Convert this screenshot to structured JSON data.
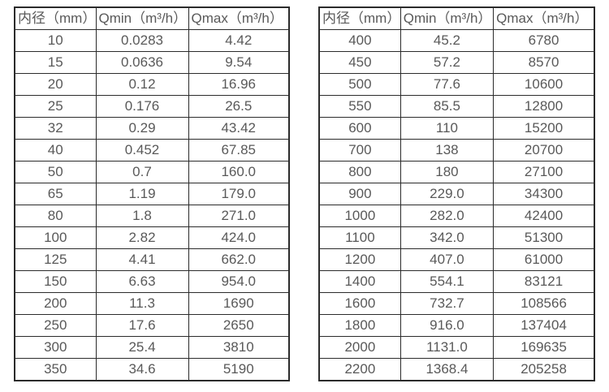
{
  "colors": {
    "background": "#ffffff",
    "border": "#2b2b2b",
    "text": "#595959"
  },
  "tables": [
    {
      "name": "flow-spec-table-small-diameters",
      "headers": [
        "内径（mm）",
        "Qmin（m³/h）",
        "Qmax（m³/h）"
      ],
      "rows": [
        [
          "10",
          "0.0283",
          "4.42"
        ],
        [
          "15",
          "0.0636",
          "9.54"
        ],
        [
          "20",
          "0.12",
          "16.96"
        ],
        [
          "25",
          "0.176",
          "26.5"
        ],
        [
          "32",
          "0.29",
          "43.42"
        ],
        [
          "40",
          "0.452",
          "67.85"
        ],
        [
          "50",
          "0.7",
          "160.0"
        ],
        [
          "65",
          "1.19",
          "179.0"
        ],
        [
          "80",
          "1.8",
          "271.0"
        ],
        [
          "100",
          "2.82",
          "424.0"
        ],
        [
          "125",
          "4.41",
          "662.0"
        ],
        [
          "150",
          "6.63",
          "954.0"
        ],
        [
          "200",
          "11.3",
          "1690"
        ],
        [
          "250",
          "17.6",
          "2650"
        ],
        [
          "300",
          "25.4",
          "3810"
        ],
        [
          "350",
          "34.6",
          "5190"
        ]
      ]
    },
    {
      "name": "flow-spec-table-large-diameters",
      "headers": [
        "内径（mm）",
        "Qmin（m³/h）",
        "Qmax（m³/h）"
      ],
      "rows": [
        [
          "400",
          "45.2",
          "6780"
        ],
        [
          "450",
          "57.2",
          "8570"
        ],
        [
          "500",
          "77.6",
          "10600"
        ],
        [
          "550",
          "85.5",
          "12800"
        ],
        [
          "600",
          "110",
          "15200"
        ],
        [
          "700",
          "138",
          "20700"
        ],
        [
          "800",
          "180",
          "27100"
        ],
        [
          "900",
          "229.0",
          "34300"
        ],
        [
          "1000",
          "282.0",
          "42400"
        ],
        [
          "1100",
          "342.0",
          "51300"
        ],
        [
          "1200",
          "407.0",
          "61000"
        ],
        [
          "1400",
          "554.1",
          "83121"
        ],
        [
          "1600",
          "732.7",
          "108566"
        ],
        [
          "1800",
          "916.0",
          "137404"
        ],
        [
          "2000",
          "1131.0",
          "169635"
        ],
        [
          "2200",
          "1368.4",
          "205258"
        ]
      ]
    }
  ]
}
